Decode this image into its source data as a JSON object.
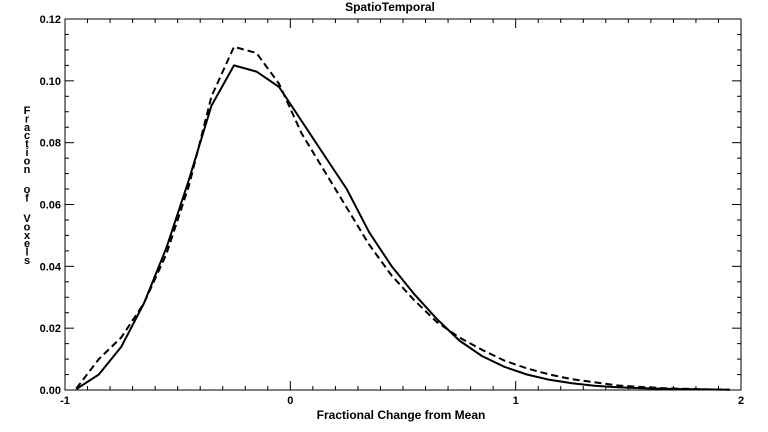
{
  "chart_data": {
    "type": "line",
    "title": "SpatioTemporal",
    "xlabel": "Fractional Change from Mean",
    "ylabel": "Fraction of Voxels",
    "xlim": [
      -1,
      2
    ],
    "ylim": [
      0,
      0.12
    ],
    "xticks": [
      -1,
      0,
      1,
      2
    ],
    "xtick_labels": [
      "-1",
      "0",
      "1",
      "2"
    ],
    "yticks": [
      0.0,
      0.02,
      0.04,
      0.06,
      0.08,
      0.1,
      0.12
    ],
    "ytick_labels": [
      "0.00",
      "0.02",
      "0.04",
      "0.06",
      "0.08",
      "0.10",
      "0.12"
    ],
    "grid": false,
    "series": [
      {
        "name": "solid",
        "style": "solid",
        "x": [
          -0.95,
          -0.85,
          -0.75,
          -0.65,
          -0.55,
          -0.45,
          -0.35,
          -0.25,
          -0.15,
          -0.05,
          0.05,
          0.15,
          0.25,
          0.35,
          0.45,
          0.55,
          0.65,
          0.75,
          0.85,
          0.95,
          1.05,
          1.15,
          1.25,
          1.35,
          1.45,
          1.55,
          1.65,
          1.75,
          1.85,
          1.95
        ],
        "y": [
          0.0003,
          0.005,
          0.014,
          0.028,
          0.046,
          0.068,
          0.092,
          0.105,
          0.103,
          0.098,
          0.087,
          0.076,
          0.065,
          0.051,
          0.04,
          0.031,
          0.023,
          0.016,
          0.011,
          0.0075,
          0.005,
          0.0033,
          0.0022,
          0.0014,
          0.0009,
          0.0006,
          0.0004,
          0.0003,
          0.0002,
          0.0001
        ]
      },
      {
        "name": "dashed",
        "style": "dashed",
        "x": [
          -0.95,
          -0.85,
          -0.75,
          -0.65,
          -0.55,
          -0.45,
          -0.35,
          -0.25,
          -0.15,
          -0.05,
          0.05,
          0.15,
          0.25,
          0.35,
          0.45,
          0.55,
          0.65,
          0.75,
          0.85,
          0.95,
          1.05,
          1.15,
          1.25,
          1.35,
          1.45,
          1.55,
          1.65,
          1.75,
          1.85,
          1.95
        ],
        "y": [
          0.0005,
          0.01,
          0.017,
          0.028,
          0.044,
          0.066,
          0.095,
          0.111,
          0.109,
          0.099,
          0.083,
          0.071,
          0.059,
          0.047,
          0.037,
          0.029,
          0.022,
          0.017,
          0.013,
          0.0095,
          0.007,
          0.005,
          0.0035,
          0.0025,
          0.0015,
          0.001,
          0.0006,
          0.0004,
          0.0002,
          0.0001
        ]
      }
    ]
  }
}
